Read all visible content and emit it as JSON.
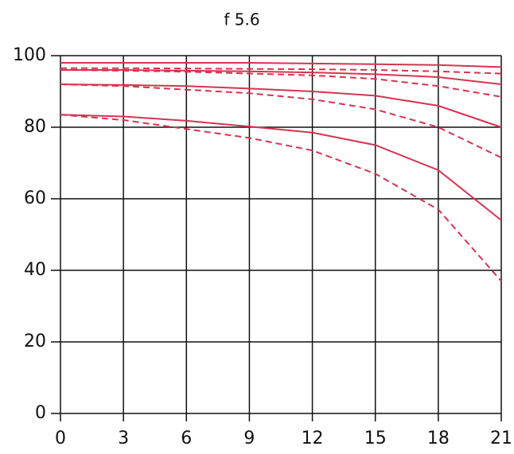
{
  "chart_data": {
    "type": "line",
    "title": "f 5.6",
    "x": [
      0,
      3,
      6,
      9,
      12,
      15,
      18,
      21
    ],
    "series": [
      {
        "color": "#d8334f",
        "dashed": false,
        "values": [
          98,
          98,
          98,
          98,
          97.8,
          97.6,
          97.4,
          96.8
        ]
      },
      {
        "color": "#d8334f",
        "dashed": true,
        "values": [
          96.5,
          96.5,
          96.4,
          96.3,
          96.2,
          96,
          95.6,
          95
        ]
      },
      {
        "color": "#d8334f",
        "dashed": false,
        "values": [
          96,
          96,
          95.8,
          95.6,
          95.3,
          94.8,
          94,
          92
        ]
      },
      {
        "color": "#d8334f",
        "dashed": true,
        "values": [
          96,
          95.8,
          95.5,
          95,
          94.5,
          93.5,
          91.5,
          88.5
        ]
      },
      {
        "color": "#d8334f",
        "dashed": false,
        "values": [
          92,
          91.8,
          91.5,
          90.8,
          90,
          88.8,
          86,
          80
        ]
      },
      {
        "color": "#d8334f",
        "dashed": true,
        "values": [
          92,
          91.5,
          90.5,
          89.5,
          87.8,
          85,
          80,
          71.5
        ]
      },
      {
        "color": "#d8334f",
        "dashed": false,
        "values": [
          83.5,
          83,
          81.8,
          80.2,
          78.5,
          75,
          68,
          54
        ]
      },
      {
        "color": "#d8334f",
        "dashed": true,
        "values": [
          83.5,
          82,
          79.5,
          77,
          73.5,
          67,
          57,
          37
        ]
      }
    ],
    "xlim": [
      0,
      21
    ],
    "xticks": [
      0,
      3,
      6,
      9,
      12,
      15,
      18,
      21
    ],
    "ylim": [
      0,
      100
    ],
    "yticks": [
      0,
      20,
      40,
      60,
      80,
      100
    ],
    "grid": true
  }
}
